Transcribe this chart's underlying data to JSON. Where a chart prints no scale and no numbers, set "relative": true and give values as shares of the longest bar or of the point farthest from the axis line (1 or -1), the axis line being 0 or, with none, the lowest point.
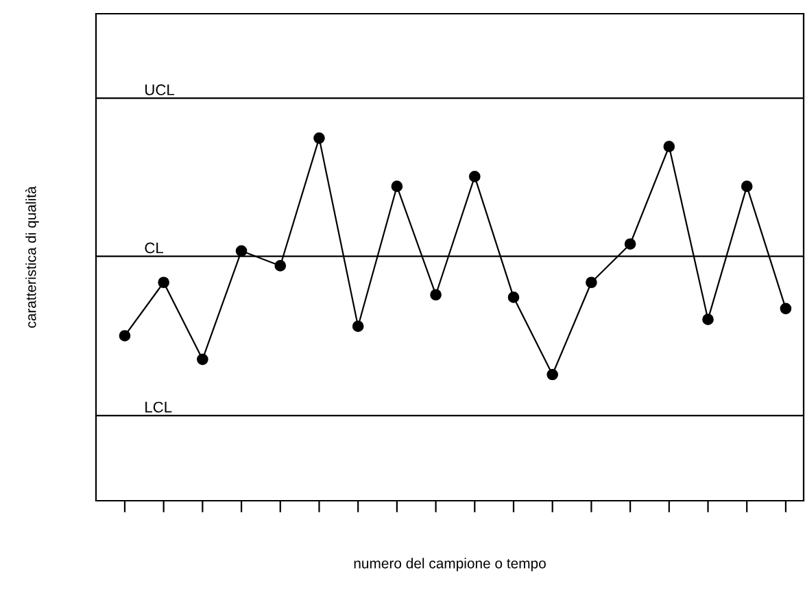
{
  "chart_data": {
    "type": "line",
    "relative": true,
    "xlabel": "numero del campione o tempo",
    "ylabel": "caratteristica di qualità",
    "categories": [
      null,
      null,
      null,
      null,
      null,
      null,
      null,
      null,
      null,
      null,
      null,
      null,
      null,
      null,
      null,
      null,
      null,
      null
    ],
    "series": [
      {
        "color": "#000000",
        "values": [
          0.455,
          0.602,
          0.39,
          0.689,
          0.648,
          1,
          0.481,
          0.867,
          0.568,
          0.894,
          0.561,
          0.348,
          0.602,
          0.708,
          0.977,
          0.5,
          0.867,
          0.53
        ]
      }
    ],
    "marker": "circle",
    "line_style": "solid",
    "grid": false,
    "legend": false,
    "ref_lines": [
      {
        "axis": "y",
        "value": 1.11,
        "label": "UCL",
        "color": "#000000"
      },
      {
        "axis": "y",
        "value": 0.674,
        "label": "CL",
        "color": "#000000"
      },
      {
        "axis": "y",
        "value": 0.235,
        "label": "LCL",
        "color": "#000000"
      }
    ]
  }
}
